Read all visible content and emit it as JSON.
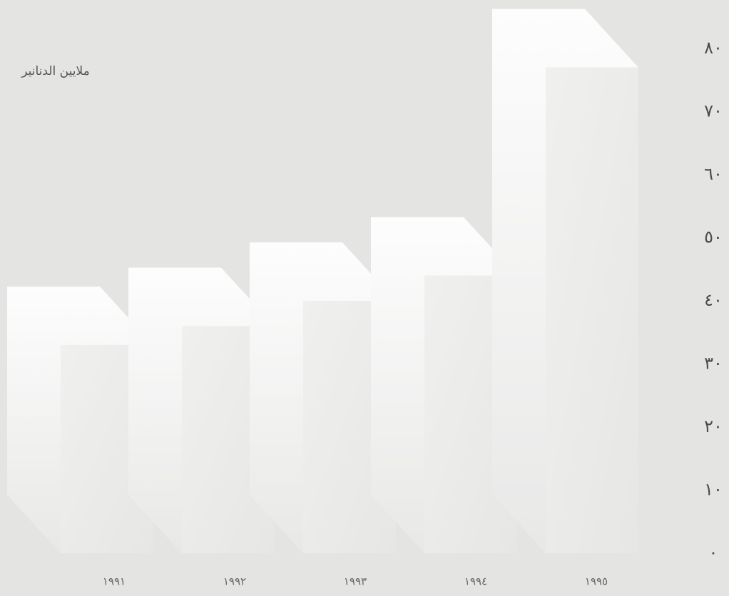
{
  "chart_data": {
    "type": "bar3d",
    "title": "ملايين الدنانير",
    "categories": [
      "١٩٩١",
      "١٩٩٢",
      "١٩٩٣",
      "١٩٩٤",
      "١٩٩٥"
    ],
    "values": [
      33,
      36,
      40,
      44,
      77
    ],
    "color": "#ebebea",
    "ylim": [
      0,
      80
    ],
    "yticks": [
      {
        "value": 0,
        "label": "٠"
      },
      {
        "value": 10,
        "label": "١٠"
      },
      {
        "value": 20,
        "label": "٢٠"
      },
      {
        "value": 30,
        "label": "٣٠"
      },
      {
        "value": 40,
        "label": "٤٠"
      },
      {
        "value": 50,
        "label": "٥٠"
      },
      {
        "value": 60,
        "label": "٦٠"
      },
      {
        "value": 70,
        "label": "٧٠"
      },
      {
        "value": 80,
        "label": "٨٠"
      }
    ],
    "grid": false
  }
}
